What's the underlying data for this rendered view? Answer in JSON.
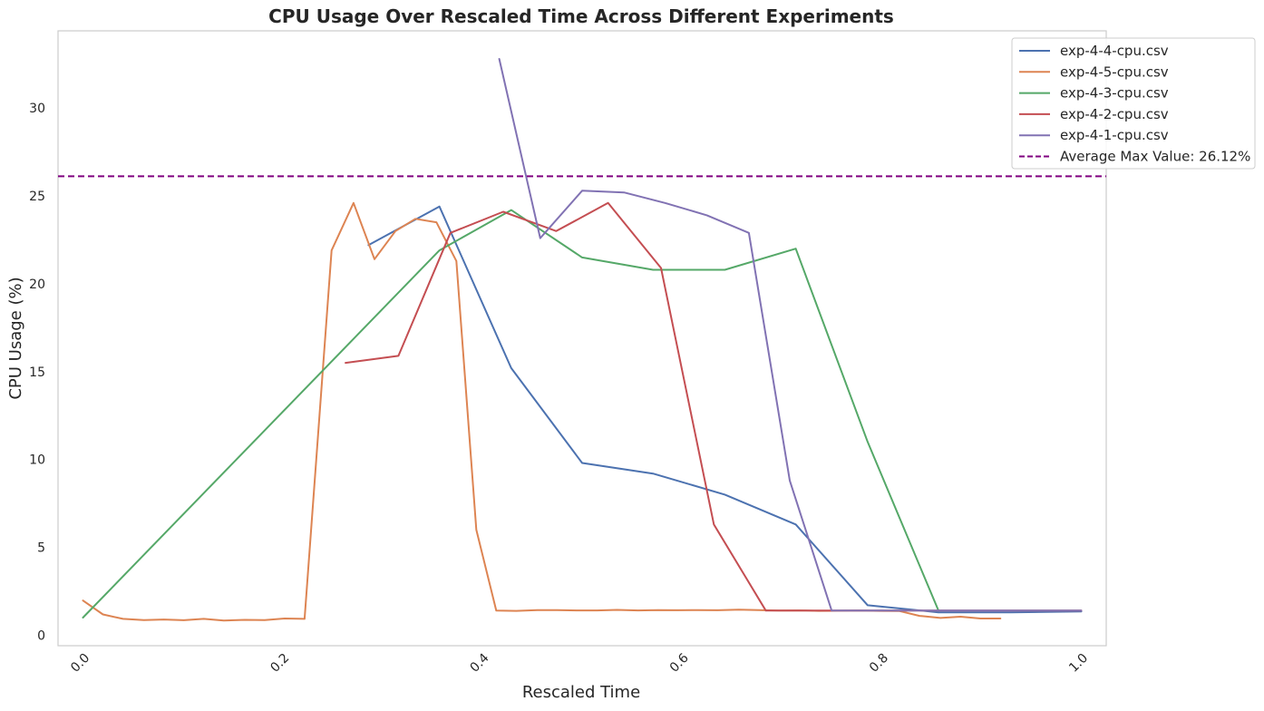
{
  "chart_data": {
    "type": "line",
    "title": "CPU Usage Over Rescaled Time Across Different Experiments",
    "xlabel": "Rescaled Time",
    "ylabel": "CPU Usage (%)",
    "xlim": [
      -0.025,
      1.025
    ],
    "ylim": [
      -0.6,
      34.4
    ],
    "xticks": [
      0.0,
      0.2,
      0.4,
      0.6,
      0.8,
      1.0
    ],
    "xtick_labels": [
      "0.0",
      "0.2",
      "0.4",
      "0.6",
      "0.8",
      "1.0"
    ],
    "yticks": [
      0,
      5,
      10,
      15,
      20,
      25,
      30
    ],
    "ytick_labels": [
      "0",
      "5",
      "10",
      "15",
      "20",
      "25",
      "30"
    ],
    "grid": false,
    "legend_position": "top-right",
    "series": [
      {
        "name": "exp-4-4-cpu.csv",
        "color": "#4c72b0",
        "x": [
          0.286,
          0.357,
          0.429,
          0.5,
          0.571,
          0.643,
          0.714,
          0.786,
          0.857,
          0.929,
          1.0
        ],
        "y": [
          22.2,
          24.4,
          15.2,
          9.8,
          9.2,
          8.0,
          6.3,
          1.7,
          1.3,
          1.3,
          1.35
        ]
      },
      {
        "name": "exp-4-5-cpu.csv",
        "color": "#dd8452",
        "x": [
          0.0,
          0.02,
          0.04,
          0.061,
          0.081,
          0.101,
          0.121,
          0.141,
          0.162,
          0.182,
          0.202,
          0.222,
          0.249,
          0.271,
          0.292,
          0.313,
          0.333,
          0.354,
          0.374,
          0.394,
          0.414,
          0.434,
          0.455,
          0.475,
          0.495,
          0.515,
          0.535,
          0.556,
          0.576,
          0.596,
          0.616,
          0.636,
          0.657,
          0.677,
          0.697,
          0.717,
          0.737,
          0.758,
          0.778,
          0.798,
          0.818,
          0.838,
          0.859,
          0.879,
          0.899,
          0.919
        ],
        "y": [
          1.97,
          1.18,
          0.93,
          0.86,
          0.89,
          0.85,
          0.93,
          0.83,
          0.87,
          0.86,
          0.95,
          0.93,
          21.9,
          24.6,
          21.4,
          23.0,
          23.7,
          23.5,
          21.3,
          6.0,
          1.4,
          1.38,
          1.43,
          1.43,
          1.41,
          1.41,
          1.44,
          1.41,
          1.43,
          1.42,
          1.43,
          1.42,
          1.45,
          1.43,
          1.4,
          1.41,
          1.38,
          1.39,
          1.4,
          1.38,
          1.37,
          1.1,
          0.98,
          1.05,
          0.95,
          0.95
        ]
      },
      {
        "name": "exp-4-3-cpu.csv",
        "color": "#55a868",
        "x": [
          0.0,
          0.357,
          0.429,
          0.5,
          0.571,
          0.643,
          0.714,
          0.786,
          0.857
        ],
        "y": [
          1.0,
          21.9,
          24.2,
          21.5,
          20.8,
          20.8,
          22.0,
          11.0,
          1.4
        ]
      },
      {
        "name": "exp-4-2-cpu.csv",
        "color": "#c44e52",
        "x": [
          0.263,
          0.316,
          0.368,
          0.421,
          0.474,
          0.526,
          0.579,
          0.632,
          0.684,
          0.737,
          0.789,
          0.842,
          0.895,
          0.947,
          1.0
        ],
        "y": [
          15.5,
          15.9,
          22.9,
          24.1,
          23.0,
          24.6,
          20.9,
          6.3,
          1.4,
          1.4,
          1.4,
          1.4,
          1.4,
          1.4,
          1.4
        ]
      },
      {
        "name": "exp-4-1-cpu.csv",
        "color": "#8172b3",
        "x": [
          0.417,
          0.458,
          0.5,
          0.542,
          0.583,
          0.625,
          0.667,
          0.708,
          0.75,
          0.792,
          0.833,
          0.875,
          0.917,
          0.958,
          1.0
        ],
        "y": [
          32.8,
          22.6,
          25.3,
          25.2,
          24.6,
          23.9,
          22.9,
          8.8,
          1.4,
          1.4,
          1.4,
          1.4,
          1.4,
          1.4,
          1.4
        ]
      }
    ],
    "reference_line": {
      "label": "Average Max Value: 26.12%",
      "y": 26.12,
      "color": "#800080",
      "style": "dashed"
    }
  }
}
